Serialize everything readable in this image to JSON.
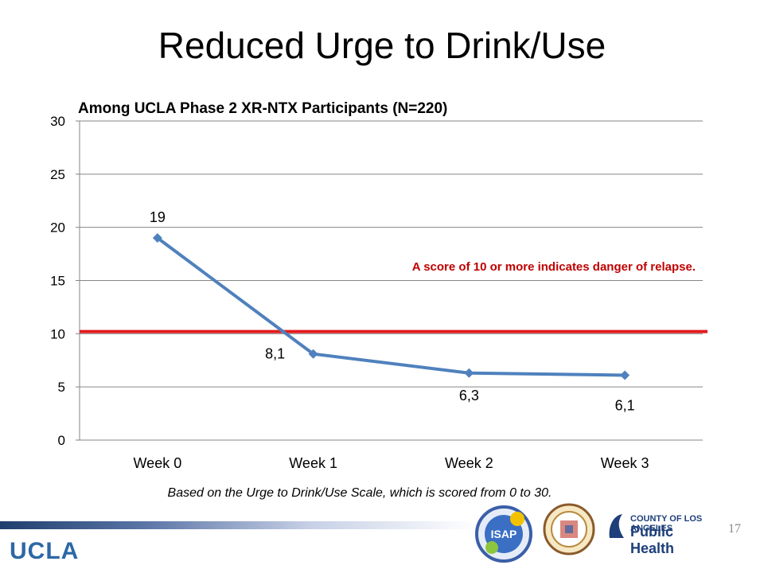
{
  "slide": {
    "title": "Reduced Urge to Drink/Use",
    "page_number": "17",
    "footer_logo": "UCLA"
  },
  "logos": {
    "isap": "ISAP",
    "county_line1": "COUNTY OF LOS ANGELES",
    "county_line2": "Public Health"
  },
  "chart_data": {
    "type": "line",
    "title": "Among UCLA Phase 2 XR-NTX Participants (N=220)",
    "categories": [
      "Week 0",
      "Week 1",
      "Week 2",
      "Week 3"
    ],
    "series": [
      {
        "values": [
          19,
          8.1,
          6.3,
          6.1
        ],
        "color": "#4f81bd"
      }
    ],
    "data_labels": [
      "19",
      "8,1",
      "6,3",
      "6,1"
    ],
    "ylim": [
      0,
      30
    ],
    "y_ticks": [
      0,
      5,
      10,
      15,
      20,
      25,
      30
    ],
    "grid": true,
    "threshold": {
      "value": 10.2,
      "color": "#e31a1c"
    },
    "annotation": "A score of 10 or more indicates danger of relapse.",
    "annotation_color": "#c00000",
    "footnote": "Based on the Urge to Drink/Use Scale, which is scored from 0 to 30."
  }
}
